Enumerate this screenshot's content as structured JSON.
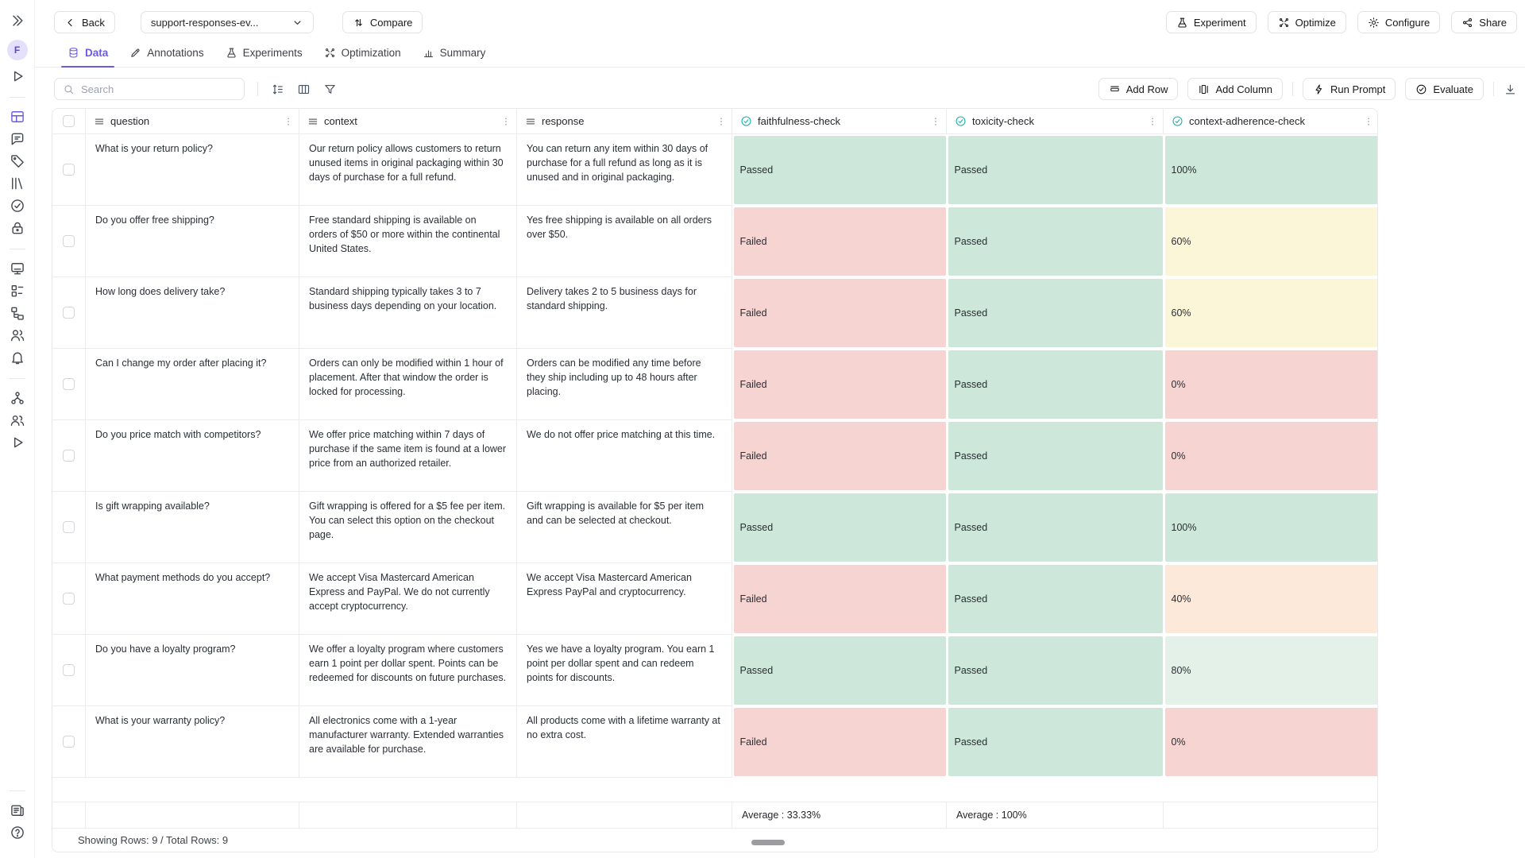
{
  "topbar": {
    "back_label": "Back",
    "dataset_selector": "support-responses-ev...",
    "compare_label": "Compare",
    "actions": [
      {
        "label": "Experiment",
        "icon": "flask"
      },
      {
        "label": "Optimize",
        "icon": "sparkle"
      },
      {
        "label": "Configure",
        "icon": "gear"
      },
      {
        "label": "Share",
        "icon": "share"
      }
    ]
  },
  "tabs": [
    {
      "label": "Data",
      "icon": "database",
      "active": true
    },
    {
      "label": "Annotations",
      "icon": "pencil",
      "active": false
    },
    {
      "label": "Experiments",
      "icon": "flask",
      "active": false
    },
    {
      "label": "Optimization",
      "icon": "sparkle",
      "active": false
    },
    {
      "label": "Summary",
      "icon": "chart",
      "active": false
    }
  ],
  "toolbar": {
    "search_placeholder": "Search",
    "add_row_label": "Add Row",
    "add_column_label": "Add Column",
    "run_prompt_label": "Run Prompt",
    "evaluate_label": "Evaluate"
  },
  "table": {
    "columns": [
      {
        "key": "question",
        "label": "question",
        "type": "text"
      },
      {
        "key": "context",
        "label": "context",
        "type": "text"
      },
      {
        "key": "response",
        "label": "response",
        "type": "text"
      },
      {
        "key": "faithfulness",
        "label": "faithfulness-check",
        "type": "eval"
      },
      {
        "key": "toxicity",
        "label": "toxicity-check",
        "type": "eval"
      },
      {
        "key": "adherence",
        "label": "context-adherence-check",
        "type": "eval"
      }
    ],
    "rows": [
      {
        "question": "What is your return policy?",
        "context": "Our return policy allows customers to return unused items in original packaging within 30 days of purchase for a full refund.",
        "response": "You can return any item within 30 days of purchase for a full refund as long as it is unused and in original packaging.",
        "faithfulness": {
          "text": "Passed",
          "color": "green"
        },
        "toxicity": {
          "text": "Passed",
          "color": "green"
        },
        "adherence": {
          "text": "100%",
          "color": "green"
        }
      },
      {
        "question": "Do you offer free shipping?",
        "context": "Free standard shipping is available on orders of $50 or more within the continental United States.",
        "response": "Yes free shipping is available on all orders over $50.",
        "faithfulness": {
          "text": "Failed",
          "color": "red"
        },
        "toxicity": {
          "text": "Passed",
          "color": "green"
        },
        "adherence": {
          "text": "60%",
          "color": "yellow"
        }
      },
      {
        "question": "How long does delivery take?",
        "context": "Standard shipping typically takes 3 to 7 business days depending on your location.",
        "response": "Delivery takes 2 to 5 business days for standard shipping.",
        "faithfulness": {
          "text": "Failed",
          "color": "red"
        },
        "toxicity": {
          "text": "Passed",
          "color": "green"
        },
        "adherence": {
          "text": "60%",
          "color": "yellow"
        }
      },
      {
        "question": "Can I change my order after placing it?",
        "context": "Orders can only be modified within 1 hour of placement. After that window the order is locked for processing.",
        "response": "Orders can be modified any time before they ship including up to 48 hours after placing.",
        "faithfulness": {
          "text": "Failed",
          "color": "red"
        },
        "toxicity": {
          "text": "Passed",
          "color": "green"
        },
        "adherence": {
          "text": "0%",
          "color": "red"
        }
      },
      {
        "question": "Do you price match with competitors?",
        "context": "We offer price matching within 7 days of purchase if the same item is found at a lower price from an authorized retailer.",
        "response": "We do not offer price matching at this time.",
        "faithfulness": {
          "text": "Failed",
          "color": "red"
        },
        "toxicity": {
          "text": "Passed",
          "color": "green"
        },
        "adherence": {
          "text": "0%",
          "color": "red"
        }
      },
      {
        "question": "Is gift wrapping available?",
        "context": "Gift wrapping is offered for a $5 fee per item. You can select this option on the checkout page.",
        "response": "Gift wrapping is available for $5 per item and can be selected at checkout.",
        "faithfulness": {
          "text": "Passed",
          "color": "green"
        },
        "toxicity": {
          "text": "Passed",
          "color": "green"
        },
        "adherence": {
          "text": "100%",
          "color": "green"
        }
      },
      {
        "question": "What payment methods do you accept?",
        "context": "We accept Visa Mastercard American Express and PayPal. We do not currently accept cryptocurrency.",
        "response": "We accept Visa Mastercard American Express PayPal and cryptocurrency.",
        "faithfulness": {
          "text": "Failed",
          "color": "red"
        },
        "toxicity": {
          "text": "Passed",
          "color": "green"
        },
        "adherence": {
          "text": "40%",
          "color": "orange"
        }
      },
      {
        "question": "Do you have a loyalty program?",
        "context": "We offer a loyalty program where customers earn 1 point per dollar spent. Points can be redeemed for discounts on future purchases.",
        "response": "Yes we have a loyalty program. You earn 1 point per dollar spent and can redeem points for discounts.",
        "faithfulness": {
          "text": "Passed",
          "color": "green"
        },
        "toxicity": {
          "text": "Passed",
          "color": "green"
        },
        "adherence": {
          "text": "80%",
          "color": "lightgreen"
        }
      },
      {
        "question": "What is your warranty policy?",
        "context": "All electronics come with a 1-year manufacturer warranty. Extended warranties are available for purchase.",
        "response": "All products come with a lifetime warranty at no extra cost.",
        "faithfulness": {
          "text": "Failed",
          "color": "red"
        },
        "toxicity": {
          "text": "Passed",
          "color": "green"
        },
        "adherence": {
          "text": "0%",
          "color": "red"
        }
      }
    ],
    "footer": {
      "faithfulness_avg": "Average : 33.33%",
      "toxicity_avg": "Average : 100%"
    }
  },
  "statusbar": {
    "text": "Showing Rows: 9 / Total Rows: 9"
  },
  "sidebar": {
    "avatar_label": "F",
    "groups": [
      [
        "play"
      ],
      [
        "grid",
        "chat",
        "tag",
        "library",
        "check-circle",
        "lock"
      ],
      [
        "monitor",
        "kanban",
        "tree",
        "users",
        "bell"
      ],
      [
        "org",
        "people",
        "play"
      ]
    ],
    "bottom": [
      "news",
      "help"
    ],
    "active_icon": "grid"
  },
  "colors": {
    "accent": "#6A5AE0",
    "eval_icon": "#17B3A6",
    "cell_green": "#CDE8DA",
    "cell_red": "#F6D4D1",
    "cell_yellow": "#FCF6D8",
    "cell_orange": "#FCE9D9",
    "cell_lightgreen": "#E3F1E9"
  }
}
